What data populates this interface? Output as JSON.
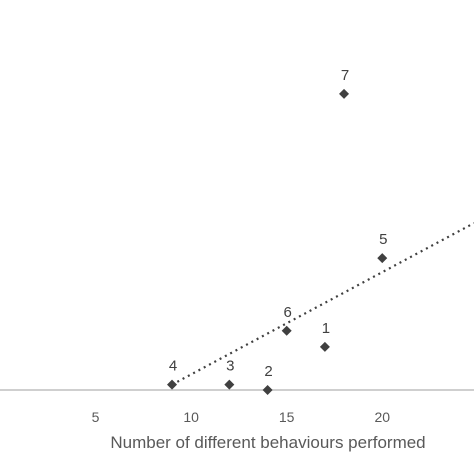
{
  "chart_data": {
    "type": "scatter",
    "title": "",
    "xlabel": "Number of different behaviours performed",
    "ylabel": "",
    "xlim": [
      0,
      24.8
    ],
    "ylim": [
      0,
      13.3
    ],
    "x_ticks": [
      5,
      10,
      15,
      20
    ],
    "x_tick_labels": [
      "5",
      "10",
      "15",
      "20"
    ],
    "grid": false,
    "legend": "none",
    "marker": "diamond",
    "colors": {
      "points": "#404040",
      "trend": "#404040",
      "axis": "#bfbfbf",
      "text": "#595959"
    },
    "points": [
      {
        "label": "1",
        "x": 17,
        "y": 1.6
      },
      {
        "label": "2",
        "x": 14,
        "y": 0
      },
      {
        "label": "3",
        "x": 12,
        "y": 0.2
      },
      {
        "label": "4",
        "x": 9,
        "y": 0.2
      },
      {
        "label": "5",
        "x": 20,
        "y": 4.9
      },
      {
        "label": "6",
        "x": 15,
        "y": 2.2
      },
      {
        "label": "7",
        "x": 18,
        "y": 11
      }
    ],
    "trendline": {
      "style": "dotted",
      "x_start": 9,
      "y_start": 0.2,
      "x_end": 24.8,
      "y_end": 6.2
    }
  }
}
